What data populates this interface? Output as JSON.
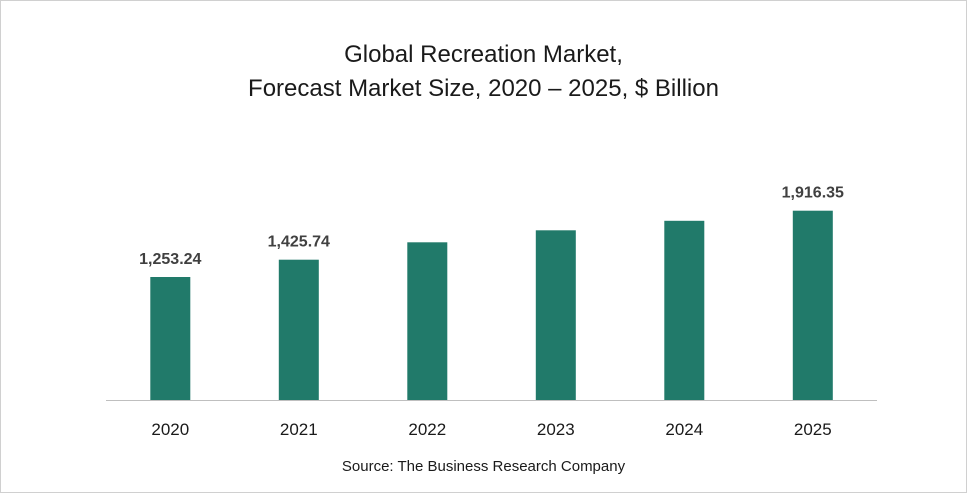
{
  "chart_data": {
    "type": "bar",
    "title_lines": [
      "Global Recreation Market,",
      "Forecast Market Size, 2020 – 2025, $ Billion"
    ],
    "categories": [
      "2020",
      "2021",
      "2022",
      "2023",
      "2024",
      "2025"
    ],
    "values": [
      1253.24,
      1425.74,
      1600,
      1720,
      1815,
      1916.35
    ],
    "data_labels": [
      "1,253.24",
      "1,425.74",
      "",
      "",
      "",
      "1,916.35"
    ],
    "bar_color": "#217a6a",
    "xlabel": "",
    "ylabel": "",
    "ylim": [
      0,
      2200
    ],
    "grid": false,
    "legend": "none",
    "source": "Source: The Business Research Company"
  }
}
